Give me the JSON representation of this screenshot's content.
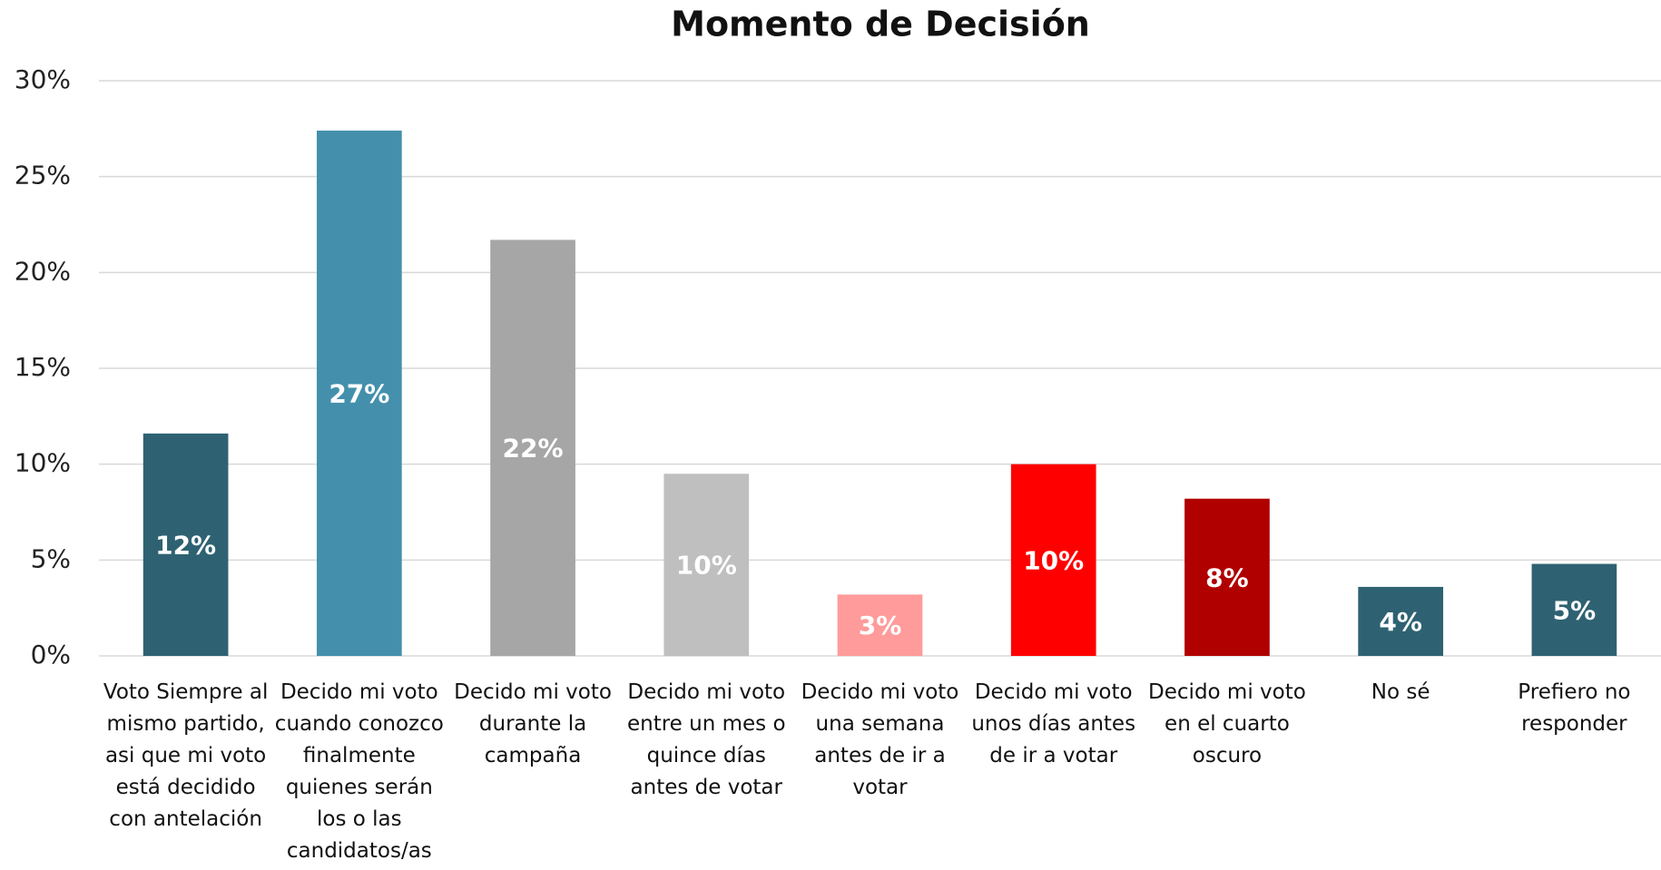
{
  "chart_data": {
    "type": "bar",
    "title": "Momento de Decisión",
    "categories": [
      "Voto Siempre al mismo partido, asi que mi voto está decidido con antelación",
      "Decido mi voto cuando conozco finalmente quienes serán los o las candidatos/as",
      "Decido mi voto durante la campaña",
      "Decido mi voto entre un mes o quince días antes de votar",
      "Decido mi voto una semana antes de ir a votar",
      "Decido mi voto unos días antes de ir a votar",
      "Decido mi voto en el cuarto oscuro",
      "No sé",
      "Prefiero no responder"
    ],
    "values": [
      11.6,
      27.4,
      21.7,
      9.5,
      3.2,
      10.0,
      8.2,
      3.6,
      4.8
    ],
    "value_labels": [
      "12%",
      "27%",
      "22%",
      "10%",
      "3%",
      "10%",
      "8%",
      "4%",
      "5%"
    ],
    "colors": [
      "#2e6272",
      "#4490ac",
      "#a6a6a6",
      "#bfbfbf",
      "#ff9b9b",
      "#ff0000",
      "#b00000",
      "#2e6272",
      "#2e6272"
    ],
    "ylim": [
      0,
      30
    ],
    "yticks": [
      {
        "value": 0,
        "label": "0%"
      },
      {
        "value": 5,
        "label": "5%"
      },
      {
        "value": 10,
        "label": "10%"
      },
      {
        "value": 15,
        "label": "15%"
      },
      {
        "value": 20,
        "label": "20%"
      },
      {
        "value": 25,
        "label": "25%"
      },
      {
        "value": 30,
        "label": "30%"
      }
    ],
    "grid": true
  }
}
